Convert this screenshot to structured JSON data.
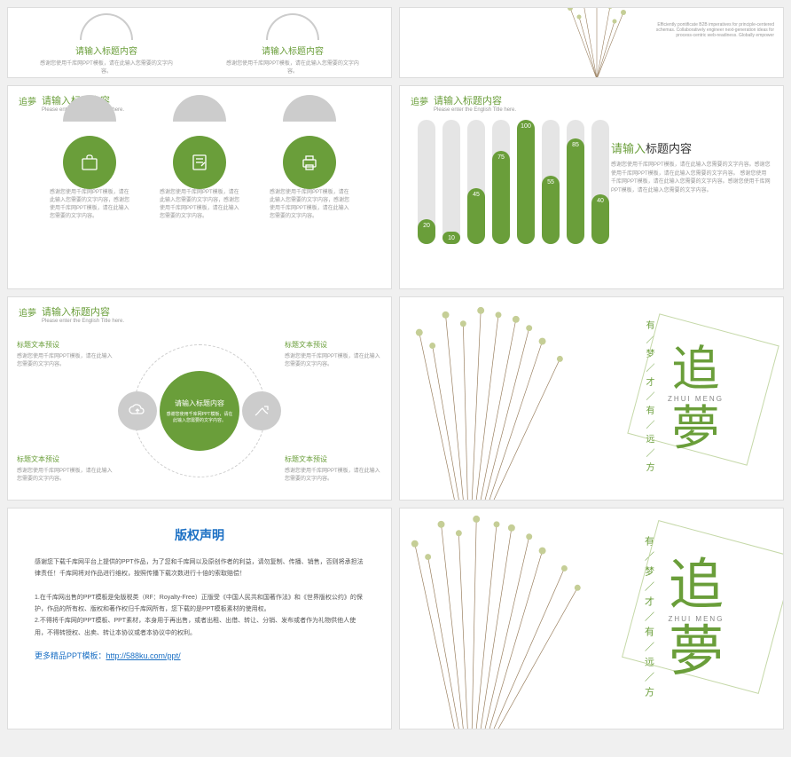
{
  "common": {
    "logo_text": "追夢",
    "title_cn": "请输入标题内容",
    "title_en": "Please enter the English Title here.",
    "desc_long": "感谢您使用千库网PPT模板，请在此输入您需要的文字内容。",
    "desc_long2": "感谢您使用千库网PPT模板，请在此输入您需要的文字内容，感谢您使用千库网PPT模板，请在此输入您需要的文字内容。"
  },
  "colors": {
    "green": "#6a9e3a",
    "grey": "#cccccc",
    "text_light": "#999999",
    "blue": "#1a6fc4",
    "bar_bg": "#e5e5e5"
  },
  "slide1": {
    "item_title": "请输入标题内容",
    "item_desc": "感谢您使用千库网PPT模板，请在此输入您需要的文字内容。",
    "right_text": "Efficiently pontificate B2B imperatives for principle-centered schemas. Collaboratively engineer next-generation ideas for process-centric web-readiness. Globally empower"
  },
  "slide3": {
    "desc": "感谢您使用千库网PPT模板，请在此输入您需要的文字内容，感谢您使用千库网PPT模板，请在此输入您需要的文字内容。"
  },
  "slide4": {
    "bars": [
      {
        "value": 20,
        "label": "20"
      },
      {
        "value": 10,
        "label": "10"
      },
      {
        "value": 45,
        "label": "45"
      },
      {
        "value": 75,
        "label": "75"
      },
      {
        "value": 100,
        "label": "100"
      },
      {
        "value": 55,
        "label": "55"
      },
      {
        "value": 85,
        "label": "85"
      },
      {
        "value": 40,
        "label": "40"
      }
    ],
    "right_title_1": "请输入",
    "right_title_2": "标题内容",
    "right_desc": "感谢您使用千库网PPT模板，请在此输入您需要的文字内容。感谢您使用千库网PPT模板，请在此输入您需要的文字内容。\n\n感谢您使用千库网PPT模板，请在此输入您需要的文字内容。感谢您使用千库网PPT模板，请在此输入您需要的文字内容。"
  },
  "slide5": {
    "center_title": "请输入标题内容",
    "center_desc": "感谢您使用千库网PPT模板，请在此输入您需要的文字内容。",
    "block_title": "标题文本预设",
    "block_desc": "感谢您使用千库网PPT模板，请在此输入您需要的文字内容。"
  },
  "zhui": {
    "vertical": "有／梦／才／有／远／方",
    "big1": "追",
    "big2": "夢",
    "pinyin": "ZHUI MENG"
  },
  "copyright": {
    "title": "版权声明",
    "p1": "感谢您下载千库网平台上提供的PPT作品，为了您和千库网以及原创作者的利益，请勿复制、传播、销售，否则将承担法律责任！千库网将对作品进行维权，按照传播下载次数进行十倍的索取赔偿！",
    "p2": "1.在千库网出售的PPT模板是免版税类（RF：Royalty-Free）正版受《中国人民共和国著作法》和《世界版权公约》的保护，作品的所有权、版权和著作权归千库网所有，您下载的是PPT模板素材的使用权。",
    "p3": "2.不得将千库网的PPT模板、PPT素材，本身用于再出售，或者出租、出借、转让、分销、发布或者作为礼物供他人使用，不得转授权、出卖、转让本协议或者本协议中的权利。",
    "more_label": "更多精品PPT模板：",
    "more_url": "http://588ku.com/ppt/"
  }
}
